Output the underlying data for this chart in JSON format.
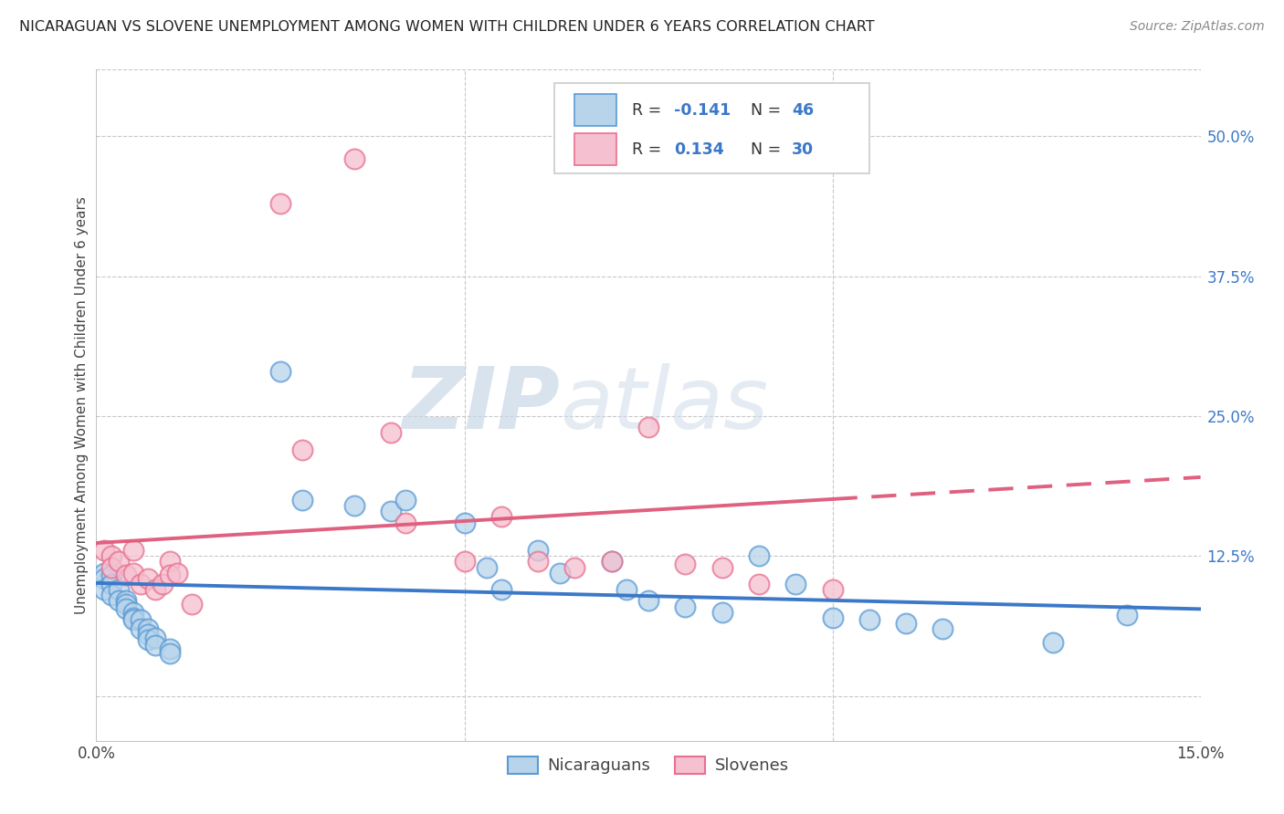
{
  "title": "NICARAGUAN VS SLOVENE UNEMPLOYMENT AMONG WOMEN WITH CHILDREN UNDER 6 YEARS CORRELATION CHART",
  "source": "Source: ZipAtlas.com",
  "ylabel": "Unemployment Among Women with Children Under 6 years",
  "watermark_zip": "ZIP",
  "watermark_atlas": "atlas",
  "legend_blue_r": "R = ",
  "legend_blue_rv": "-0.141",
  "legend_blue_n": "N = ",
  "legend_blue_nv": "46",
  "legend_pink_r": "R =  ",
  "legend_pink_rv": "0.134",
  "legend_pink_n": "N = ",
  "legend_pink_nv": "30",
  "legend_label_blue": "Nicaraguans",
  "legend_label_pink": "Slovenes",
  "blue_fill": "#b8d4ea",
  "blue_edge": "#5b9bd5",
  "blue_line": "#3c78c8",
  "pink_fill": "#f5c0d0",
  "pink_edge": "#e87090",
  "pink_line": "#e06080",
  "value_color": "#3c78c8",
  "blue_scatter_x": [
    0.001,
    0.001,
    0.001,
    0.002,
    0.002,
    0.002,
    0.003,
    0.003,
    0.004,
    0.004,
    0.004,
    0.005,
    0.005,
    0.005,
    0.006,
    0.006,
    0.007,
    0.007,
    0.007,
    0.008,
    0.008,
    0.01,
    0.01,
    0.025,
    0.028,
    0.035,
    0.04,
    0.042,
    0.05,
    0.053,
    0.055,
    0.06,
    0.063,
    0.07,
    0.072,
    0.075,
    0.08,
    0.085,
    0.09,
    0.095,
    0.1,
    0.105,
    0.11,
    0.115,
    0.13,
    0.14
  ],
  "blue_scatter_y": [
    0.11,
    0.105,
    0.095,
    0.108,
    0.1,
    0.09,
    0.095,
    0.085,
    0.085,
    0.082,
    0.078,
    0.075,
    0.07,
    0.068,
    0.068,
    0.06,
    0.06,
    0.055,
    0.05,
    0.052,
    0.045,
    0.042,
    0.038,
    0.29,
    0.175,
    0.17,
    0.165,
    0.175,
    0.155,
    0.115,
    0.095,
    0.13,
    0.11,
    0.12,
    0.095,
    0.085,
    0.08,
    0.075,
    0.125,
    0.1,
    0.07,
    0.068,
    0.065,
    0.06,
    0.048,
    0.072
  ],
  "pink_scatter_x": [
    0.001,
    0.002,
    0.002,
    0.003,
    0.004,
    0.005,
    0.005,
    0.006,
    0.007,
    0.008,
    0.009,
    0.01,
    0.01,
    0.011,
    0.013,
    0.025,
    0.028,
    0.035,
    0.04,
    0.042,
    0.05,
    0.055,
    0.06,
    0.065,
    0.07,
    0.075,
    0.08,
    0.085,
    0.09,
    0.1
  ],
  "pink_scatter_y": [
    0.13,
    0.125,
    0.115,
    0.12,
    0.108,
    0.13,
    0.11,
    0.1,
    0.105,
    0.095,
    0.1,
    0.12,
    0.108,
    0.11,
    0.082,
    0.44,
    0.22,
    0.48,
    0.235,
    0.155,
    0.12,
    0.16,
    0.12,
    0.115,
    0.12,
    0.24,
    0.118,
    0.115,
    0.1,
    0.095
  ],
  "xlim": [
    0.0,
    0.15
  ],
  "ylim": [
    -0.04,
    0.56
  ],
  "ytick_vals": [
    0.0,
    0.125,
    0.25,
    0.375,
    0.5
  ],
  "ytick_labels": [
    "",
    "12.5%",
    "25.0%",
    "37.5%",
    "50.0%"
  ],
  "background_color": "#ffffff",
  "grid_color": "#c8c8c8"
}
